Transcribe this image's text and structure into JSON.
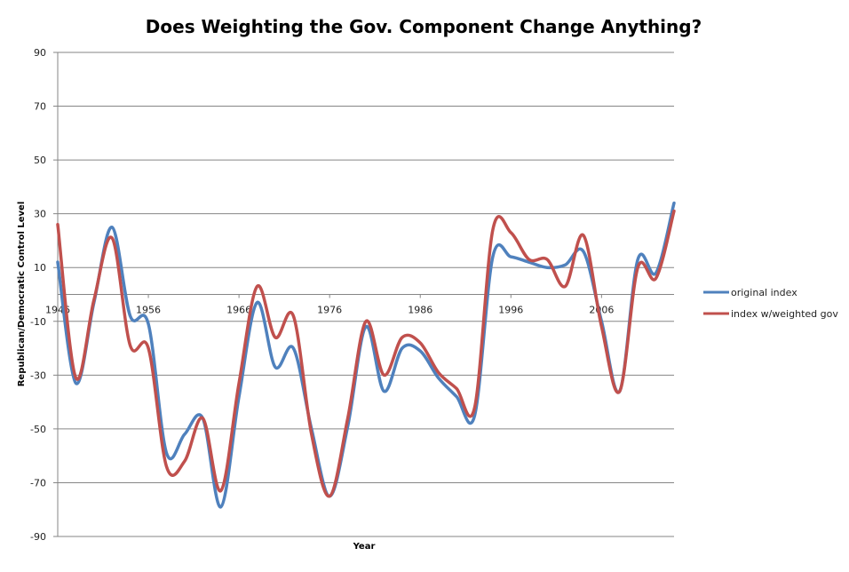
{
  "chart_data": {
    "type": "line",
    "title": "Does Weighting the Gov. Component Change Anything?",
    "xlabel": "Year",
    "ylabel": "Republican/Democratic  Control Level",
    "x_ticks": [
      "1946",
      "1956",
      "1966",
      "1976",
      "1986",
      "1996",
      "2006"
    ],
    "x_tick_values": [
      1946,
      1956,
      1966,
      1976,
      1986,
      1996,
      2006
    ],
    "y_ticks": [
      "90",
      "70",
      "50",
      "30",
      "10",
      "-10",
      "-30",
      "-50",
      "-70",
      "-90"
    ],
    "y_tick_values": [
      90,
      70,
      50,
      30,
      10,
      -10,
      -30,
      -50,
      -70,
      -90
    ],
    "xlim": [
      1946,
      2014
    ],
    "ylim": [
      -90,
      90
    ],
    "grid": true,
    "smooth": true,
    "legend_position": "right",
    "x": [
      1946,
      1948,
      1950,
      1952,
      1954,
      1956,
      1958,
      1960,
      1962,
      1964,
      1966,
      1968,
      1970,
      1972,
      1974,
      1976,
      1978,
      1980,
      1982,
      1984,
      1986,
      1988,
      1990,
      1992,
      1994,
      1996,
      1998,
      2000,
      2002,
      2004,
      2006,
      2008,
      2010,
      2012,
      2014
    ],
    "series": [
      {
        "name": "original index",
        "color": "#4F81BD",
        "values": [
          12,
          -33,
          -3,
          25,
          -8,
          -11,
          -59,
          -52,
          -46,
          -79,
          -38,
          -3,
          -27,
          -20,
          -50,
          -75,
          -49,
          -12,
          -36,
          -20,
          -21,
          -31,
          -38,
          -45,
          14,
          14,
          12,
          10,
          11,
          16,
          -10,
          -36,
          13,
          8,
          34
        ]
      },
      {
        "name": "index w/weighted gov",
        "color": "#C0504D",
        "values": [
          26,
          -31,
          -2,
          21,
          -19,
          -20,
          -64,
          -62,
          -46,
          -73,
          -33,
          3,
          -16,
          -8,
          -52,
          -75,
          -46,
          -10,
          -30,
          -16,
          -18,
          -29,
          -35,
          -42,
          24,
          23,
          13,
          13,
          3,
          22,
          -12,
          -36,
          10,
          6,
          31
        ]
      }
    ]
  }
}
